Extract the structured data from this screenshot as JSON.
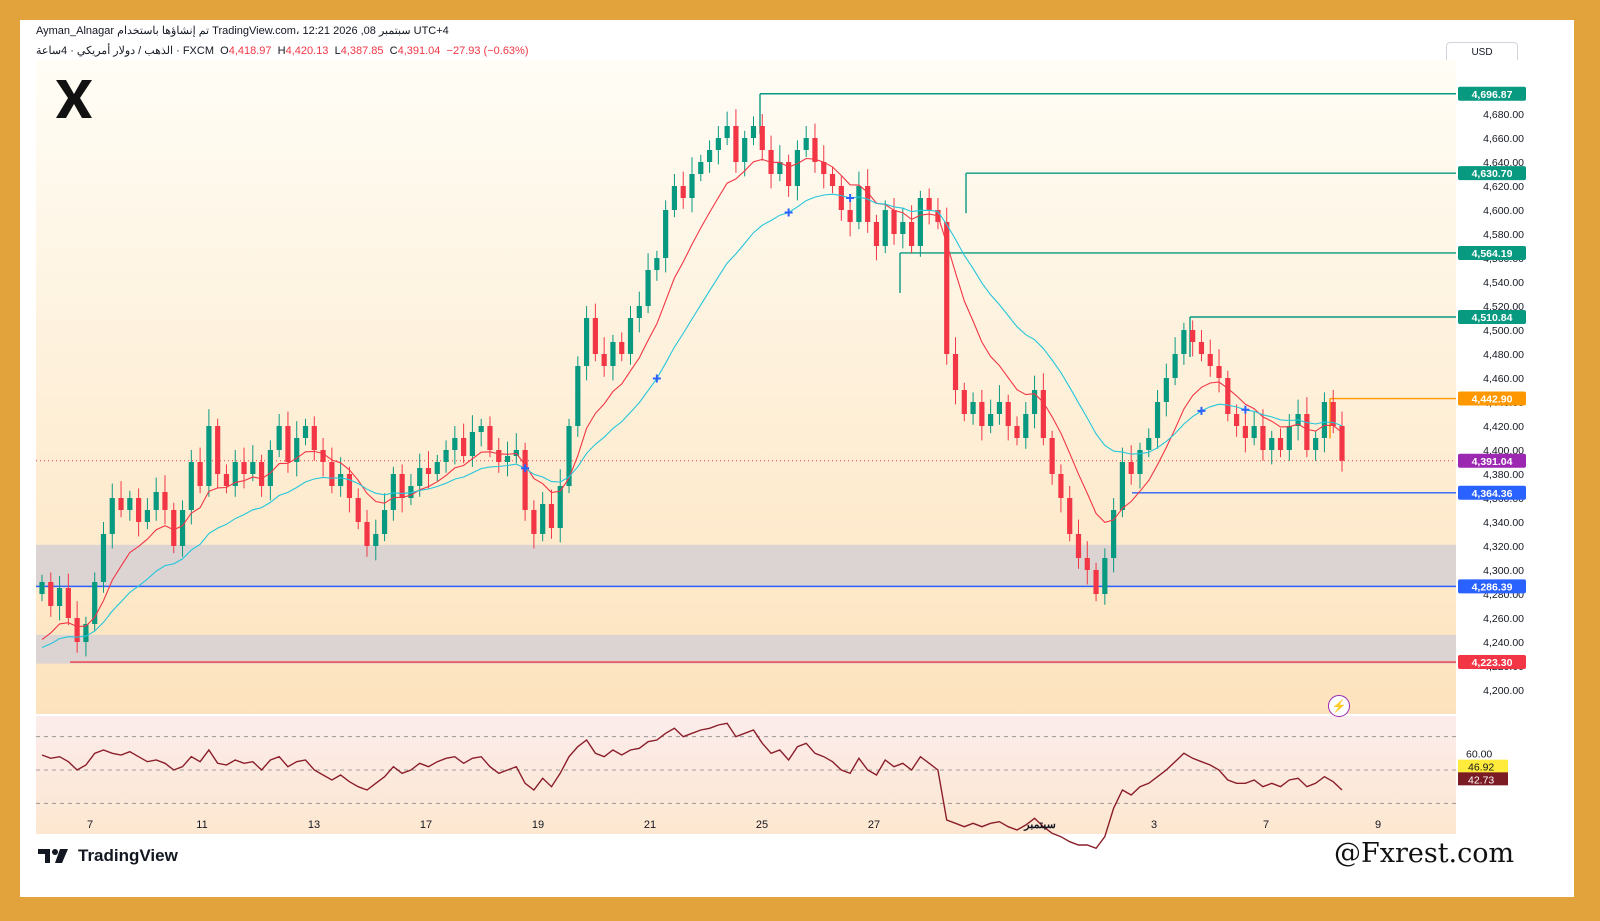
{
  "header": {
    "author": "Ayman_Alnagar",
    "published_line": "تم إنشاؤها باستخدام TradingView.com، 12:21 2026 ,08 سبتمبر UTC+4",
    "symbol_line": "الذهب / دولار أمريكي · 4ساعة · FXCM",
    "open_label": "O",
    "open": "4,418.97",
    "high_label": "H",
    "high": "4,420.13",
    "low_label": "L",
    "low": "4,387.85",
    "close_label": "C",
    "close": "4,391.04",
    "change": "−27.93 (−0.63%)"
  },
  "currency_button": "USD",
  "brand": "TradingView",
  "watermark": "@Fxrest.com",
  "colors": {
    "up": "#089981",
    "down": "#f23645",
    "ema_fast": "#f23645",
    "ema_slow": "#26c6da",
    "level_green": "#089981",
    "level_blue": "#2962ff",
    "level_red": "#f23645",
    "level_orange": "#ff9800",
    "last_price": "#9c27b0",
    "zone": "#d8d2d4",
    "rsi": "#8b1e2b"
  },
  "chart_data": {
    "type": "candlestick",
    "price_axis_ticks": [
      "4,700.00",
      "4,680.00",
      "4,660.00",
      "4,640.00",
      "4,620.00",
      "4,600.00",
      "4,580.00",
      "4,560.00",
      "4,540.00",
      "4,520.00",
      "4,500.00",
      "4,480.00",
      "4,460.00",
      "4,440.00",
      "4,420.00",
      "4,400.00",
      "4,380.00",
      "4,360.00",
      "4,340.00",
      "4,320.00",
      "4,300.00",
      "4,280.00",
      "4,260.00",
      "4,240.00",
      "4,220.00",
      "4,200.00"
    ],
    "x_ticks": [
      "7",
      "11",
      "13",
      "17",
      "19",
      "21",
      "25",
      "27",
      "سبتمبر",
      "3",
      "7",
      "9"
    ],
    "ylim": [
      4180,
      4720
    ],
    "levels": [
      {
        "price": 4696.87,
        "label": "4,696.87",
        "color": "green"
      },
      {
        "price": 4630.7,
        "label": "4,630.70",
        "color": "green"
      },
      {
        "price": 4564.19,
        "label": "4,564.19",
        "color": "green"
      },
      {
        "price": 4510.84,
        "label": "4,510.84",
        "color": "green"
      },
      {
        "price": 4442.9,
        "label": "4,442.90",
        "color": "orange"
      },
      {
        "price": 4391.04,
        "label": "4,391.04",
        "color": "last"
      },
      {
        "price": 4364.36,
        "label": "4,364.36",
        "color": "blue"
      },
      {
        "price": 4286.39,
        "label": "4,286.39",
        "color": "blue"
      },
      {
        "price": 4223.3,
        "label": "4,223.30",
        "color": "red"
      }
    ],
    "zones": [
      {
        "from": 4285,
        "to": 4321
      },
      {
        "from": 4222,
        "to": 4246
      }
    ],
    "closes": [
      4290,
      4270,
      4285,
      4260,
      4240,
      4255,
      4290,
      4330,
      4360,
      4350,
      4360,
      4340,
      4350,
      4365,
      4350,
      4320,
      4350,
      4390,
      4370,
      4420,
      4380,
      4370,
      4390,
      4380,
      4390,
      4370,
      4400,
      4420,
      4390,
      4410,
      4420,
      4400,
      4390,
      4370,
      4380,
      4360,
      4340,
      4320,
      4330,
      4350,
      4380,
      4360,
      4370,
      4385,
      4380,
      4390,
      4400,
      4410,
      4395,
      4415,
      4420,
      4400,
      4390,
      4395,
      4400,
      4350,
      4330,
      4355,
      4335,
      4370,
      4420,
      4470,
      4510,
      4480,
      4470,
      4490,
      4480,
      4510,
      4520,
      4550,
      4560,
      4600,
      4620,
      4610,
      4630,
      4640,
      4650,
      4660,
      4670,
      4640,
      4660,
      4670,
      4650,
      4630,
      4640,
      4620,
      4650,
      4660,
      4640,
      4630,
      4620,
      4600,
      4590,
      4620,
      4590,
      4570,
      4600,
      4580,
      4590,
      4570,
      4610,
      4600,
      4590,
      4480,
      4450,
      4430,
      4440,
      4420,
      4430,
      4440,
      4420,
      4410,
      4430,
      4450,
      4410,
      4380,
      4360,
      4330,
      4310,
      4300,
      4280,
      4310,
      4350,
      4390,
      4380,
      4400,
      4410,
      4440,
      4460,
      4480,
      4500,
      4490,
      4480,
      4470,
      4460,
      4430,
      4420,
      4410,
      4420,
      4400,
      4410,
      4400,
      4420,
      4430,
      4400,
      4410,
      4440,
      4420,
      4391
    ],
    "rsi": {
      "ticks": [
        "60.00",
        "46.92",
        "42.73"
      ],
      "last_values": [
        46.92,
        42.73
      ],
      "values": [
        59,
        57,
        58,
        55,
        50,
        53,
        60,
        62,
        60,
        59,
        61,
        58,
        55,
        56,
        54,
        50,
        52,
        58,
        55,
        62,
        54,
        53,
        56,
        54,
        55,
        50,
        56,
        58,
        52,
        55,
        56,
        50,
        47,
        44,
        47,
        43,
        40,
        38,
        42,
        46,
        52,
        48,
        50,
        54,
        52,
        55,
        57,
        58,
        54,
        57,
        58,
        52,
        48,
        50,
        52,
        42,
        38,
        45,
        40,
        48,
        58,
        64,
        68,
        60,
        58,
        62,
        59,
        62,
        63,
        67,
        68,
        72,
        75,
        70,
        72,
        74,
        75,
        77,
        78,
        70,
        72,
        74,
        66,
        60,
        62,
        56,
        64,
        66,
        60,
        58,
        55,
        50,
        48,
        57,
        50,
        47,
        56,
        52,
        54,
        50,
        58,
        54,
        50,
        20,
        18,
        16,
        18,
        16,
        18,
        19,
        16,
        14,
        17,
        21,
        16,
        12,
        10,
        7,
        5,
        5,
        3,
        10,
        27,
        38,
        35,
        40,
        42,
        46,
        50,
        55,
        60,
        57,
        55,
        53,
        50,
        44,
        42,
        42,
        44,
        40,
        42,
        40,
        44,
        45,
        40,
        42,
        46,
        43,
        38
      ]
    }
  }
}
